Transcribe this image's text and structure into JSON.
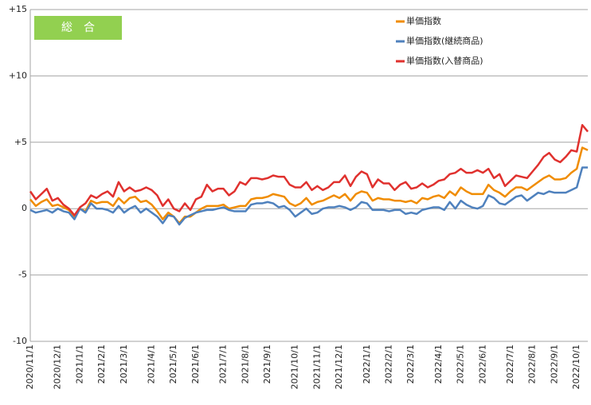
{
  "chart_data": {
    "type": "line",
    "annotation": "総　合",
    "categories": [
      "2020/11/1",
      null,
      null,
      null,
      null,
      "2020/12/1",
      null,
      null,
      null,
      "2021/1/1",
      null,
      null,
      null,
      "2021/2/1",
      null,
      null,
      null,
      "2021/3/1",
      null,
      null,
      null,
      null,
      "2021/4/1",
      null,
      null,
      null,
      "2021/5/1",
      null,
      null,
      null,
      "2021/6/1",
      null,
      null,
      null,
      null,
      "2021/7/1",
      null,
      null,
      null,
      "2021/8/1",
      null,
      null,
      null,
      "2021/9/1",
      null,
      null,
      null,
      null,
      "2021/10/1",
      null,
      null,
      null,
      "2021/11/1",
      null,
      null,
      null,
      "2021/12/1",
      null,
      null,
      null,
      null,
      "2022/1/1",
      null,
      null,
      null,
      "2022/2/1",
      null,
      null,
      null,
      "2022/3/1",
      null,
      null,
      null,
      null,
      "2022/4/1",
      null,
      null,
      null,
      "2022/5/1",
      null,
      null,
      null,
      "2022/6/1",
      null,
      null,
      null,
      null,
      "2022/7/1",
      null,
      null,
      null,
      "2022/8/1",
      null,
      null,
      null,
      "2022/9/1",
      null,
      null,
      null,
      "2022/10/1",
      null,
      null
    ],
    "series": [
      {
        "name": "単価指数",
        "color": "#f08c00",
        "values": [
          0.7,
          0.2,
          0.5,
          0.7,
          0.2,
          0.3,
          0.1,
          -0.1,
          -0.6,
          0.0,
          -0.2,
          0.6,
          0.4,
          0.5,
          0.5,
          0.2,
          0.8,
          0.4,
          0.8,
          0.9,
          0.5,
          0.6,
          0.3,
          -0.2,
          -0.8,
          -0.3,
          -0.6,
          -1.1,
          -0.6,
          -0.6,
          -0.3,
          0.0,
          0.2,
          0.2,
          0.2,
          0.3,
          0.0,
          0.1,
          0.2,
          0.2,
          0.7,
          0.8,
          0.8,
          0.9,
          1.1,
          1.0,
          0.9,
          0.4,
          0.2,
          0.4,
          0.8,
          0.3,
          0.5,
          0.6,
          0.8,
          1.0,
          0.8,
          1.1,
          0.6,
          1.1,
          1.3,
          1.2,
          0.6,
          0.8,
          0.7,
          0.7,
          0.6,
          0.6,
          0.5,
          0.6,
          0.4,
          0.8,
          0.7,
          0.9,
          1.0,
          0.8,
          1.3,
          1.0,
          1.6,
          1.3,
          1.1,
          1.1,
          1.1,
          1.8,
          1.4,
          1.2,
          0.9,
          1.3,
          1.6,
          1.6,
          1.4,
          1.7,
          2.0,
          2.3,
          2.5,
          2.2,
          2.2,
          2.3,
          2.7,
          3.0,
          4.6,
          4.4
        ]
      },
      {
        "name": "単価指数(継続商品)",
        "color": "#4f81bd",
        "values": [
          -0.1,
          -0.3,
          -0.2,
          -0.1,
          -0.3,
          0.0,
          -0.2,
          -0.3,
          -0.8,
          0.0,
          -0.3,
          0.4,
          0.0,
          0.0,
          -0.1,
          -0.3,
          0.2,
          -0.3,
          0.0,
          0.2,
          -0.3,
          0.0,
          -0.3,
          -0.6,
          -1.1,
          -0.5,
          -0.6,
          -1.2,
          -0.7,
          -0.5,
          -0.3,
          -0.2,
          -0.1,
          -0.1,
          0.0,
          0.1,
          -0.1,
          -0.2,
          -0.2,
          -0.2,
          0.3,
          0.4,
          0.4,
          0.5,
          0.4,
          0.1,
          0.2,
          -0.1,
          -0.6,
          -0.3,
          0.0,
          -0.4,
          -0.3,
          0.0,
          0.1,
          0.1,
          0.2,
          0.1,
          -0.1,
          0.1,
          0.5,
          0.4,
          -0.1,
          -0.1,
          -0.1,
          -0.2,
          -0.1,
          -0.1,
          -0.4,
          -0.3,
          -0.4,
          -0.1,
          0.0,
          0.1,
          0.1,
          -0.1,
          0.5,
          0.0,
          0.6,
          0.3,
          0.1,
          0.0,
          0.2,
          1.0,
          0.8,
          0.4,
          0.3,
          0.6,
          0.9,
          1.0,
          0.6,
          0.9,
          1.2,
          1.1,
          1.3,
          1.2,
          1.2,
          1.2,
          1.4,
          1.6,
          3.1,
          3.1
        ]
      },
      {
        "name": "単価指数(入替商品)",
        "color": "#e0312e",
        "values": [
          1.3,
          0.7,
          1.1,
          1.5,
          0.6,
          0.8,
          0.3,
          0.0,
          -0.5,
          0.1,
          0.4,
          1.0,
          0.8,
          1.1,
          1.3,
          0.9,
          2.0,
          1.3,
          1.6,
          1.3,
          1.4,
          1.6,
          1.4,
          1.0,
          0.2,
          0.7,
          0.0,
          -0.2,
          0.4,
          -0.1,
          0.7,
          0.9,
          1.8,
          1.3,
          1.5,
          1.5,
          1.0,
          1.3,
          2.0,
          1.8,
          2.3,
          2.3,
          2.2,
          2.3,
          2.5,
          2.4,
          2.4,
          1.8,
          1.6,
          1.6,
          2.0,
          1.4,
          1.7,
          1.4,
          1.6,
          2.0,
          2.0,
          2.5,
          1.7,
          2.4,
          2.8,
          2.6,
          1.6,
          2.2,
          1.9,
          1.9,
          1.4,
          1.8,
          2.0,
          1.5,
          1.6,
          1.9,
          1.6,
          1.8,
          2.1,
          2.2,
          2.6,
          2.7,
          3.0,
          2.7,
          2.7,
          2.9,
          2.7,
          3.0,
          2.3,
          2.6,
          1.7,
          2.1,
          2.5,
          2.4,
          2.3,
          2.8,
          3.3,
          3.9,
          4.2,
          3.7,
          3.5,
          3.9,
          4.4,
          4.3,
          6.3,
          5.8
        ]
      }
    ],
    "ylim": [
      -10,
      15
    ],
    "yticks": [
      {
        "value": 15,
        "label": "+15"
      },
      {
        "value": 10,
        "label": "+10"
      },
      {
        "value": 5,
        "label": "+5"
      },
      0,
      -5,
      -10
    ],
    "grid": true,
    "legend": "top-right"
  }
}
